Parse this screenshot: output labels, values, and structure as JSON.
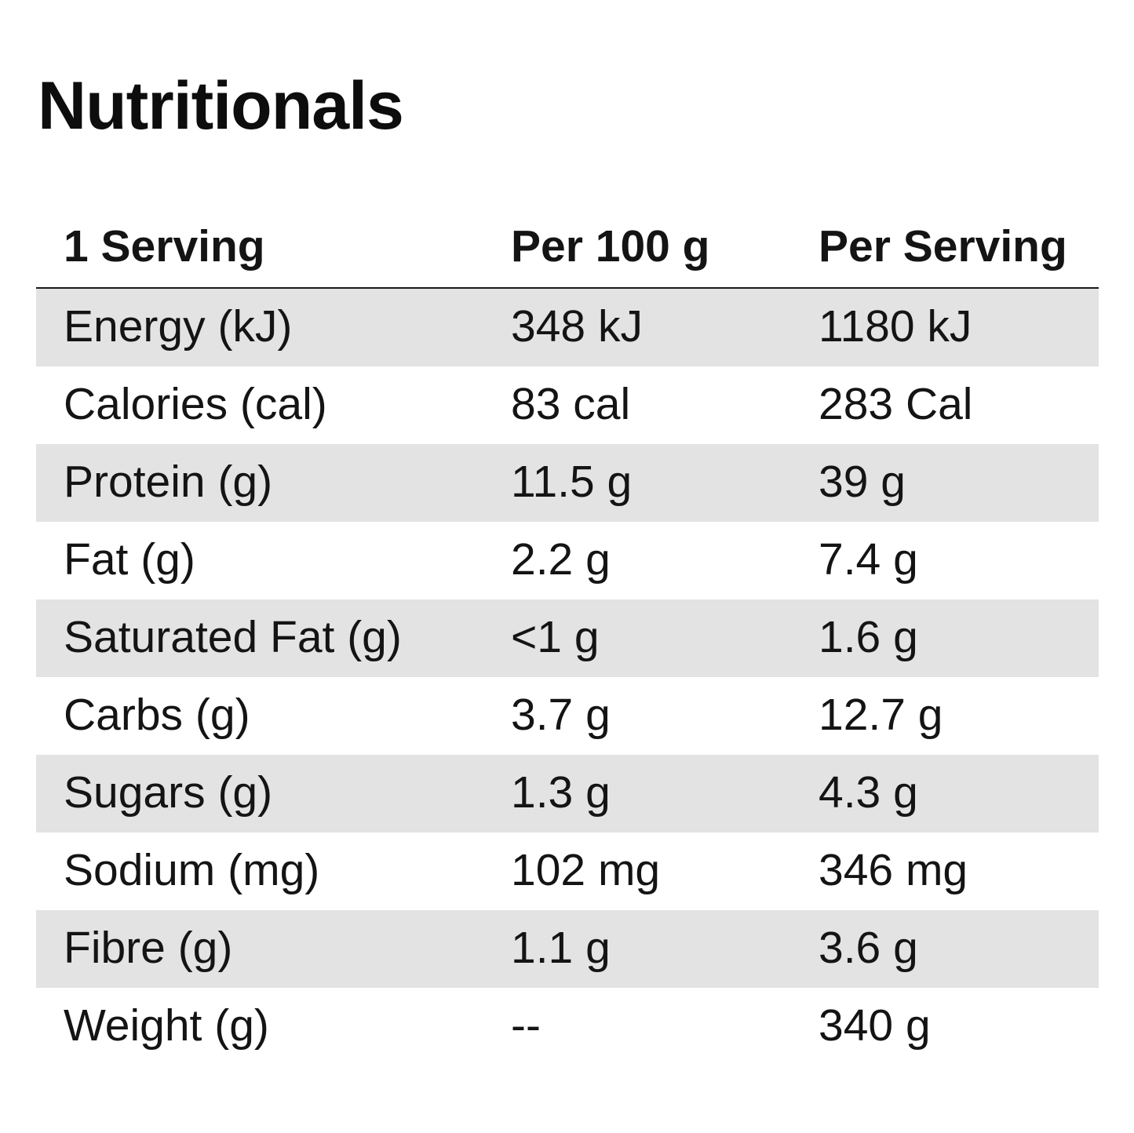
{
  "title": "Nutritionals",
  "table": {
    "headers": [
      "1 Serving",
      "Per 100 g",
      "Per Serving"
    ],
    "rows": [
      {
        "label": "Energy (kJ)",
        "per100": "348 kJ",
        "perServing": "1180 kJ"
      },
      {
        "label": "Calories (cal)",
        "per100": "83 cal",
        "perServing": "283 Cal"
      },
      {
        "label": "Protein (g)",
        "per100": "11.5 g",
        "perServing": "39 g"
      },
      {
        "label": "Fat (g)",
        "per100": "2.2 g",
        "perServing": "7.4 g"
      },
      {
        "label": "Saturated Fat (g)",
        "per100": "<1 g",
        "perServing": "1.6 g"
      },
      {
        "label": "Carbs (g)",
        "per100": "3.7 g",
        "perServing": "12.7 g"
      },
      {
        "label": "Sugars (g)",
        "per100": "1.3 g",
        "perServing": "4.3 g"
      },
      {
        "label": "Sodium (mg)",
        "per100": "102 mg",
        "perServing": "346 mg"
      },
      {
        "label": "Fibre (g)",
        "per100": "1.1 g",
        "perServing": "3.6 g"
      },
      {
        "label": "Weight (g)",
        "per100": "--",
        "perServing": "340 g"
      }
    ]
  },
  "colors": {
    "text": "#111111",
    "row_shade": "#e3e3e3",
    "header_rule": "#1a1a1a",
    "background": "#ffffff"
  }
}
